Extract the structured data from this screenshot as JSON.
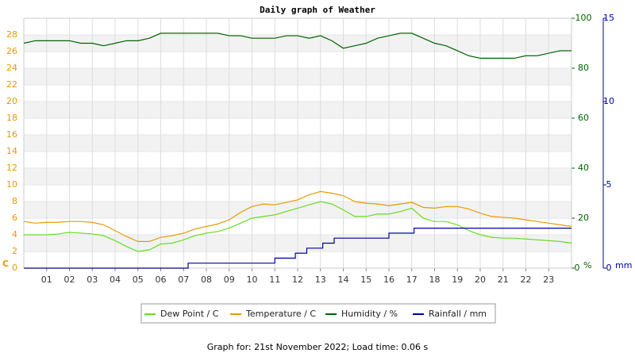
{
  "chart_data": {
    "type": "line",
    "title": "Daily graph of Weather",
    "footer": "Graph for: 21st November 2022; Load time: 0.06 s",
    "ylabel": "C",
    "y2label": "%",
    "y3label": "mm",
    "xlim": [
      0,
      24
    ],
    "xticks": [
      {
        "value": 1,
        "label": "01"
      },
      {
        "value": 2,
        "label": "02"
      },
      {
        "value": 3,
        "label": "03"
      },
      {
        "value": 4,
        "label": "04"
      },
      {
        "value": 5,
        "label": "05"
      },
      {
        "value": 6,
        "label": "06"
      },
      {
        "value": 7,
        "label": "07"
      },
      {
        "value": 8,
        "label": "08"
      },
      {
        "value": 9,
        "label": "09"
      },
      {
        "value": 10,
        "label": "10"
      },
      {
        "value": 11,
        "label": "11"
      },
      {
        "value": 12,
        "label": "12"
      },
      {
        "value": 13,
        "label": "13"
      },
      {
        "value": 14,
        "label": "14"
      },
      {
        "value": 15,
        "label": "15"
      },
      {
        "value": 16,
        "label": "16"
      },
      {
        "value": 17,
        "label": "17"
      },
      {
        "value": 18,
        "label": "18"
      },
      {
        "value": 19,
        "label": "19"
      },
      {
        "value": 20,
        "label": "20"
      },
      {
        "value": 21,
        "label": "21"
      },
      {
        "value": 22,
        "label": "22"
      },
      {
        "value": 23,
        "label": "23"
      }
    ],
    "ylim": [
      0,
      30
    ],
    "yticks": [
      0,
      2,
      4,
      6,
      8,
      10,
      12,
      14,
      16,
      18,
      20,
      22,
      24,
      26,
      28
    ],
    "ytick_color": "#e89a00",
    "y2lim": [
      0,
      100
    ],
    "y2ticks": [
      0,
      20,
      40,
      60,
      80,
      100
    ],
    "y2tick_color": "#006400",
    "y3lim": [
      0,
      15
    ],
    "y3ticks": [
      0,
      5,
      10,
      15
    ],
    "y3tick_color": "#0000a0",
    "grid": true,
    "legend": "bottom",
    "series": [
      {
        "name": "Dew Point / C",
        "color": "#66dd22",
        "axis": "y",
        "x": [
          0,
          0.5,
          1,
          1.5,
          2,
          2.5,
          3,
          3.5,
          4,
          4.5,
          5,
          5.5,
          6,
          6.5,
          7,
          7.5,
          8,
          8.5,
          9,
          9.5,
          10,
          10.5,
          11,
          11.5,
          12,
          12.5,
          13,
          13.5,
          14,
          14.5,
          15,
          15.5,
          16,
          16.5,
          17,
          17.5,
          18,
          18.5,
          19,
          19.5,
          20,
          20.5,
          21,
          21.5,
          22,
          22.5,
          23,
          23.5,
          24
        ],
        "values": [
          4.0,
          4.0,
          4.0,
          4.1,
          4.3,
          4.2,
          4.1,
          3.9,
          3.3,
          2.6,
          2.0,
          2.2,
          2.9,
          3.0,
          3.4,
          3.9,
          4.2,
          4.4,
          4.8,
          5.4,
          6.0,
          6.2,
          6.4,
          6.8,
          7.2,
          7.6,
          8.0,
          7.7,
          7.0,
          6.2,
          6.2,
          6.5,
          6.5,
          6.8,
          7.2,
          6.0,
          5.6,
          5.6,
          5.2,
          4.5,
          4.0,
          3.7,
          3.6,
          3.6,
          3.5,
          3.4,
          3.3,
          3.2,
          3.0
        ]
      },
      {
        "name": "Temperature / C",
        "color": "#e89a00",
        "axis": "y",
        "x": [
          0,
          0.5,
          1,
          1.5,
          2,
          2.5,
          3,
          3.5,
          4,
          4.5,
          5,
          5.5,
          6,
          6.5,
          7,
          7.5,
          8,
          8.5,
          9,
          9.5,
          10,
          10.5,
          11,
          11.5,
          12,
          12.5,
          13,
          13.5,
          14,
          14.5,
          15,
          15.5,
          16,
          16.5,
          17,
          17.5,
          18,
          18.5,
          19,
          19.5,
          20,
          20.5,
          21,
          21.5,
          22,
          22.5,
          23,
          23.5,
          24
        ],
        "values": [
          5.6,
          5.4,
          5.5,
          5.5,
          5.6,
          5.6,
          5.5,
          5.2,
          4.5,
          3.8,
          3.2,
          3.2,
          3.7,
          3.9,
          4.2,
          4.7,
          5.0,
          5.3,
          5.8,
          6.7,
          7.4,
          7.7,
          7.6,
          7.9,
          8.2,
          8.8,
          9.2,
          9.0,
          8.7,
          8.0,
          7.8,
          7.7,
          7.5,
          7.7,
          7.9,
          7.3,
          7.2,
          7.4,
          7.4,
          7.1,
          6.6,
          6.2,
          6.1,
          6.0,
          5.8,
          5.6,
          5.4,
          5.2,
          5.0
        ]
      },
      {
        "name": "Humidity / %",
        "color": "#006400",
        "axis": "y2",
        "x": [
          0,
          0.5,
          1,
          1.5,
          2,
          2.5,
          3,
          3.5,
          4,
          4.5,
          5,
          5.5,
          6,
          6.5,
          7,
          7.5,
          8,
          8.5,
          9,
          9.5,
          10,
          10.5,
          11,
          11.5,
          12,
          12.5,
          13,
          13.5,
          14,
          14.5,
          15,
          15.5,
          16,
          16.5,
          17,
          17.5,
          18,
          18.5,
          19,
          19.5,
          20,
          20.5,
          21,
          21.5,
          22,
          22.5,
          23,
          23.5,
          24
        ],
        "values": [
          90,
          91,
          91,
          91,
          91,
          90,
          90,
          89,
          90,
          91,
          91,
          92,
          94,
          94,
          94,
          94,
          94,
          94,
          93,
          93,
          92,
          92,
          92,
          93,
          93,
          92,
          93,
          91,
          88,
          89,
          90,
          92,
          93,
          94,
          94,
          92,
          90,
          89,
          87,
          85,
          84,
          84,
          84,
          84,
          85,
          85,
          86,
          87,
          87
        ]
      },
      {
        "name": "Rainfall / mm",
        "color": "#0000a0",
        "axis": "y3",
        "x": [
          0,
          7.2,
          7.2,
          11,
          11,
          11.9,
          11.9,
          12.4,
          12.4,
          13.1,
          13.1,
          13.6,
          13.6,
          16,
          16,
          17.1,
          17.1,
          24
        ],
        "values": [
          0,
          0,
          0.3,
          0.3,
          0.6,
          0.6,
          0.9,
          0.9,
          1.2,
          1.2,
          1.5,
          1.5,
          1.8,
          1.8,
          2.1,
          2.1,
          2.4,
          2.4
        ]
      }
    ]
  }
}
